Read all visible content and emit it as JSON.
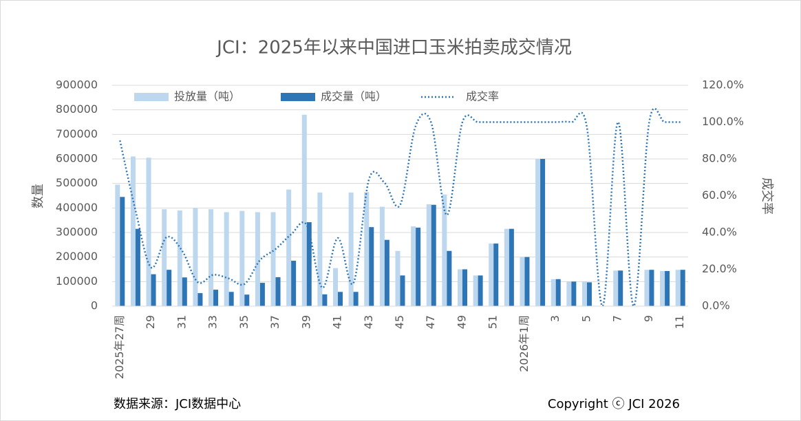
{
  "chart_data": {
    "type": "bar",
    "title": "JCI：2025年以来中国进口玉米拍卖成交情况",
    "ylabel": "数量",
    "y2label": "成交率",
    "source": "数据来源：JCI数据中心",
    "copyright": "Copyright ⓒ JCI 2026",
    "categories": [
      "2025年27周",
      null,
      "29",
      null,
      "31",
      null,
      "33",
      null,
      "35",
      null,
      "37",
      null,
      "39",
      null,
      "41",
      null,
      "43",
      null,
      "45",
      null,
      "47",
      null,
      "49",
      null,
      "51",
      null,
      "2026年1周",
      null,
      "3",
      null,
      "5",
      null,
      "7",
      null,
      "9",
      null,
      "11"
    ],
    "series": [
      {
        "name": "投放量（吨）",
        "type": "bar",
        "color": "#bdd7ee",
        "values": [
          495000,
          610000,
          605000,
          395000,
          390000,
          400000,
          395000,
          383000,
          388000,
          383000,
          383000,
          475000,
          780000,
          463000,
          155000,
          463000,
          465000,
          405000,
          225000,
          325000,
          415000,
          455000,
          150000,
          125000,
          255000,
          315000,
          200000,
          600000,
          110000,
          100000,
          100000,
          0,
          145000,
          0,
          148000,
          143000,
          148000
        ]
      },
      {
        "name": "成交量（吨）",
        "type": "bar",
        "color": "#2e75b6",
        "values": [
          445000,
          315000,
          130000,
          148000,
          117000,
          53000,
          67000,
          58000,
          47000,
          95000,
          118000,
          185000,
          342000,
          48000,
          58000,
          58000,
          322000,
          270000,
          125000,
          320000,
          413000,
          225000,
          150000,
          125000,
          255000,
          315000,
          200000,
          600000,
          110000,
          100000,
          97000,
          0,
          145000,
          0,
          148000,
          143000,
          148000
        ]
      },
      {
        "name": "成交率",
        "type": "line",
        "axis": "y2",
        "color": "#2e75b6",
        "values": [
          90,
          52,
          21,
          37.5,
          30,
          13,
          17,
          15,
          12,
          25,
          31,
          39,
          44,
          10,
          37,
          12.5,
          69,
          67,
          55,
          98,
          99.5,
          49.5,
          100,
          100,
          100,
          100,
          100,
          100,
          100,
          100,
          97,
          0,
          100,
          0,
          100,
          100,
          100
        ]
      }
    ],
    "ylim": [
      0,
      900000
    ],
    "yticks": [
      0,
      100000,
      200000,
      300000,
      400000,
      500000,
      600000,
      700000,
      800000,
      900000
    ],
    "y2lim": [
      0,
      120
    ],
    "y2ticks": [
      {
        "value": 0,
        "label": "0.0%"
      },
      {
        "value": 20,
        "label": "20.0%"
      },
      {
        "value": 40,
        "label": "40.0%"
      },
      {
        "value": 60,
        "label": "60.0%"
      },
      {
        "value": 80,
        "label": "80.0%"
      },
      {
        "value": 100,
        "label": "100.0%"
      },
      {
        "value": 120,
        "label": "120.0%"
      }
    ],
    "grid": true,
    "legend": "top"
  }
}
